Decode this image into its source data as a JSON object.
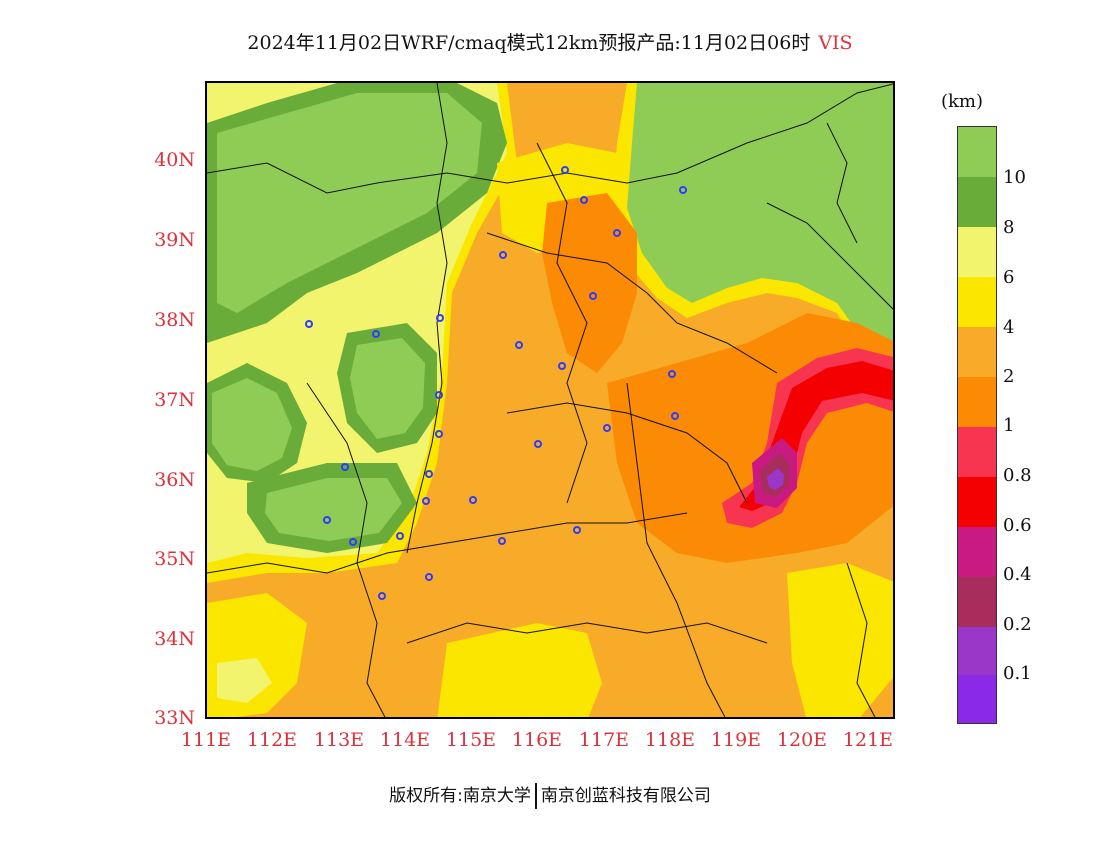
{
  "title": {
    "text": "2024年11月02日WRF/cmaq模式12km预报产品:11月02日06时",
    "variable": "VIS"
  },
  "axes": {
    "y_ticks": [
      "40N",
      "39N",
      "38N",
      "37N",
      "36N",
      "35N",
      "34N",
      "33N"
    ],
    "x_ticks": [
      "111E",
      "112E",
      "113E",
      "114E",
      "115E",
      "116E",
      "117E",
      "118E",
      "119E",
      "120E",
      "121E"
    ],
    "lon_range": [
      111,
      121.4
    ],
    "lat_range": [
      33,
      40.95
    ]
  },
  "legend": {
    "unit": "(km)",
    "labels": [
      "10",
      "8",
      "6",
      "4",
      "2",
      "1",
      "0.8",
      "0.6",
      "0.4",
      "0.2",
      "0.1"
    ],
    "colors": [
      "#8ecc55",
      "#6aac3a",
      "#f2f46e",
      "#fbe600",
      "#f8ab28",
      "#fb8a05",
      "#f83550",
      "#f40000",
      "#c81a80",
      "#a82c5c",
      "#9a36c8",
      "#8a2ae8"
    ]
  },
  "map": {
    "colors": {
      "bright_green": "#8ecc55",
      "dark_green": "#6aac3a",
      "light_yellow": "#f2f46e",
      "yellow": "#fbe600",
      "light_orange": "#f8ab28",
      "orange": "#fb8a05",
      "pink": "#f83550",
      "red": "#f40000",
      "magenta": "#c81a80",
      "maroon": "#a82c5c",
      "purple": "#9a36c8"
    },
    "cities_marker_color": "#2f3bff"
  },
  "footer": {
    "left": "版权所有:南京大学",
    "right": "南京创蓝科技有限公司"
  }
}
